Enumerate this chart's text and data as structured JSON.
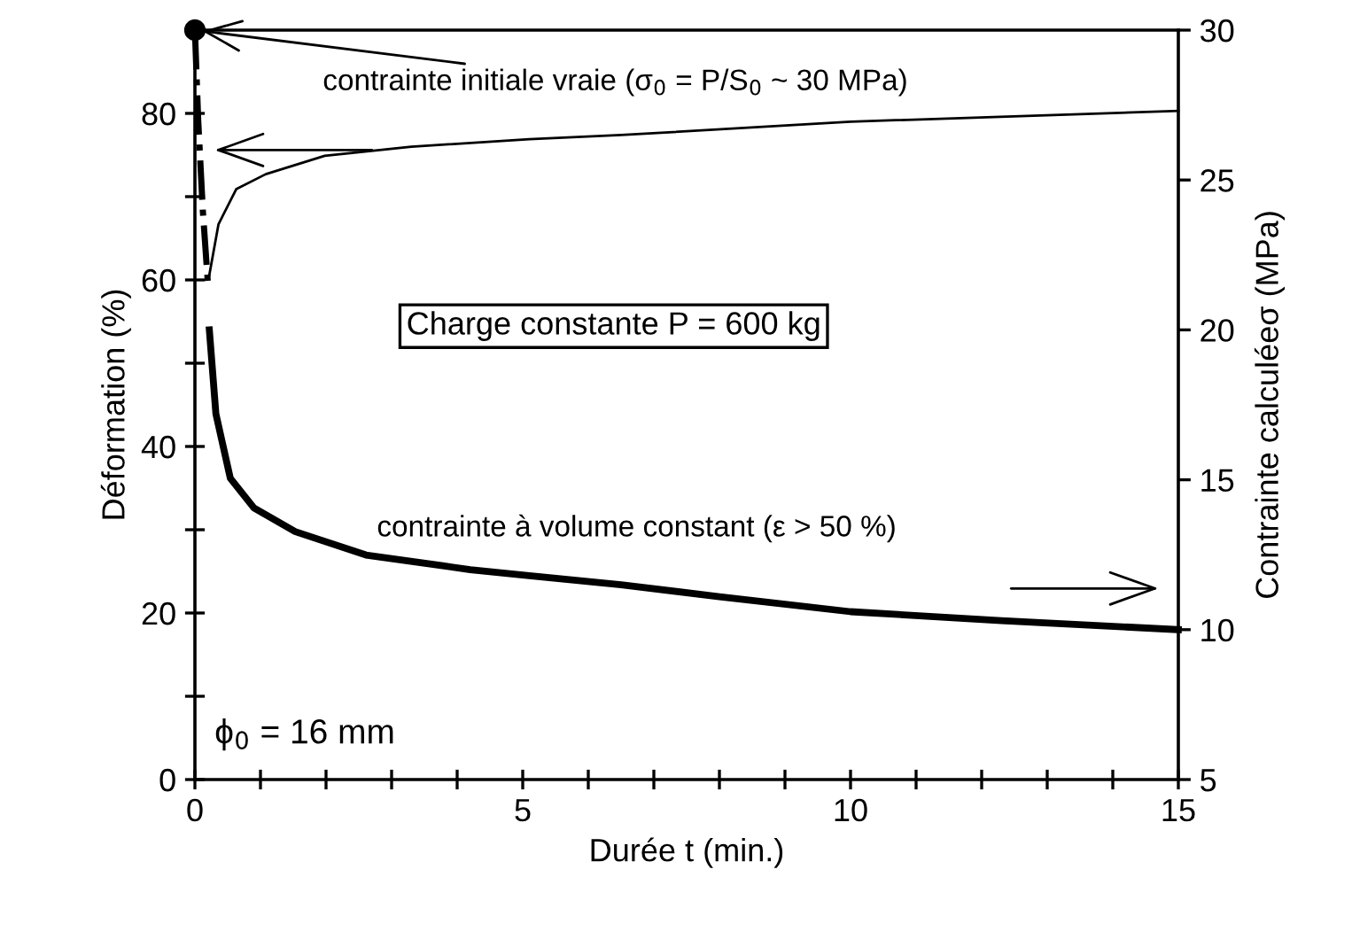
{
  "chart_data": {
    "type": "line",
    "xlabel": "Durée t (min.)",
    "ylabel": "Déformation (%)",
    "y2label": "Contrainte calculéeσ (MPa)",
    "series": [
      {
        "color": "#000000",
        "x": [
          0.22,
          0.36,
          0.63,
          1.08,
          1.98,
          3.3,
          5.1,
          6.5,
          10,
          15
        ],
        "values": [
          60.6,
          66.7,
          70.9,
          72.7,
          74.9,
          76.0,
          76.9,
          77.4,
          79.0,
          80.3
        ]
      },
      {
        "color": "#000000",
        "axis": "y2",
        "x": [
          0.22,
          0.32,
          0.54,
          0.9,
          1.53,
          2.61,
          3.78,
          4.2,
          5.1,
          6.5,
          8,
          10,
          12.3,
          15
        ],
        "values": [
          20.0,
          17.2,
          15.05,
          14.06,
          13.27,
          12.49,
          12.13,
          12.0,
          11.8,
          11.5,
          11.1,
          10.6,
          10.3,
          10.0
        ]
      },
      {
        "color": "#000000",
        "axis": "y2",
        "line_style": "dashdot",
        "x": [
          0,
          0.05,
          0.12,
          0.2
        ],
        "values": [
          30,
          27,
          24,
          21.5
        ]
      },
      {
        "color": "#000000",
        "axis": "y2",
        "type": "scatter",
        "marker": "circle",
        "x": [
          0
        ],
        "values": [
          30
        ]
      }
    ],
    "annotations": [
      {
        "text": "contrainte initiale vraie (σ$_{0}$ = P/S$_{0}$ ~ 30 MPa)",
        "x": 0,
        "y": 90
      },
      "Charge constante P = 600 kg",
      "contrainte à volume constant (ε > 50 %)",
      "ϕ$_{0}$ = 16 mm"
    ],
    "xlim": [
      0,
      15
    ],
    "xticks": [
      0,
      {
        "value": 1,
        "label": null
      },
      {
        "value": 2,
        "label": null
      },
      {
        "value": 3,
        "label": null
      },
      {
        "value": 4,
        "label": null
      },
      5,
      {
        "value": 6,
        "label": null
      },
      {
        "value": 7,
        "label": null
      },
      {
        "value": 8,
        "label": null
      },
      {
        "value": 9,
        "label": null
      },
      10,
      {
        "value": 11,
        "label": null
      },
      {
        "value": 12,
        "label": null
      },
      {
        "value": 13,
        "label": null
      },
      {
        "value": 14,
        "label": null
      },
      15
    ],
    "ylim": [
      0,
      90
    ],
    "yticks": [
      0,
      {
        "value": 10,
        "label": null
      },
      20,
      {
        "value": 30,
        "label": null
      },
      40,
      {
        "value": 50,
        "label": null
      },
      60,
      {
        "value": 70,
        "label": null
      },
      80
    ],
    "y2lim": [
      5,
      30
    ],
    "y2ticks": [
      5,
      10,
      15,
      20,
      25,
      30
    ],
    "grid": false,
    "legend": false
  }
}
